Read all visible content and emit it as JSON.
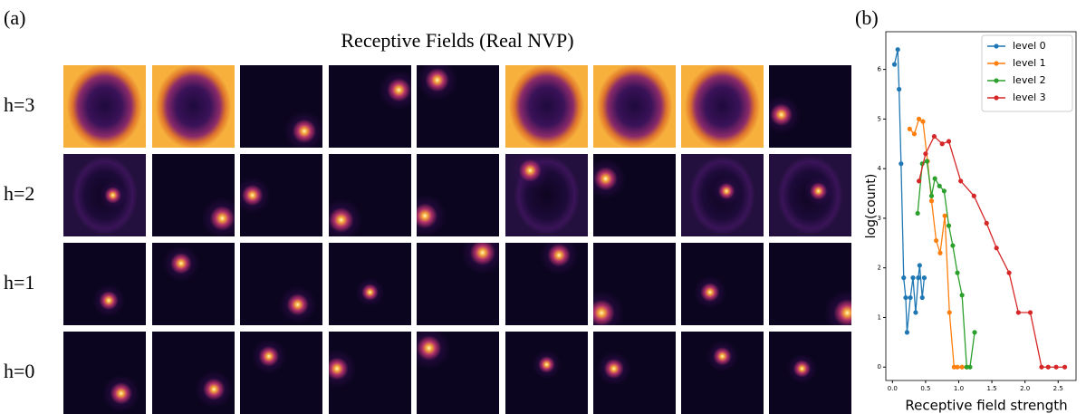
{
  "panels": {
    "a": "(a)",
    "b": "(b)"
  },
  "grid": {
    "title": "Receptive Fields (Real NVP)",
    "rows": [
      "h=3",
      "h=2",
      "h=1",
      "h=0"
    ]
  },
  "chart_data": {
    "type": "line",
    "xlabel": "Receptive field strength",
    "ylabel": "log(count)",
    "xlim": [
      -0.1,
      2.77
    ],
    "ylim": [
      -0.27,
      6.76
    ],
    "xticks": [
      {
        "value": 0,
        "label": "0.0"
      },
      {
        "value": 0.5,
        "label": "0.5"
      },
      {
        "value": 1,
        "label": "1.0"
      },
      {
        "value": 1.5,
        "label": "1.5"
      },
      {
        "value": 2,
        "label": "2.0"
      },
      {
        "value": 2.5,
        "label": "2.5"
      }
    ],
    "yticks": [
      0,
      1,
      2,
      3,
      4,
      5,
      6
    ],
    "legend": "upper right",
    "series": [
      {
        "name": "level 0",
        "color": "#1f77b4",
        "x": [
          0.03,
          0.08,
          0.1,
          0.13,
          0.17,
          0.2,
          0.22,
          0.27,
          0.31,
          0.35,
          0.39,
          0.41,
          0.45,
          0.48
        ],
        "values": [
          6.1,
          6.4,
          5.6,
          4.1,
          1.8,
          1.4,
          0.7,
          1.4,
          1.8,
          1.1,
          1.8,
          2.05,
          1.4,
          1.8
        ]
      },
      {
        "name": "level 1",
        "color": "#ff7f0e",
        "x": [
          0.26,
          0.33,
          0.4,
          0.46,
          0.53,
          0.59,
          0.66,
          0.72,
          0.79,
          0.86,
          0.93,
          0.98,
          1.05,
          1.12
        ],
        "values": [
          4.8,
          4.7,
          5.0,
          4.95,
          4.15,
          3.35,
          2.55,
          2.3,
          3.05,
          1.1,
          0,
          0,
          0,
          0
        ]
      },
      {
        "name": "level 2",
        "color": "#2ca02c",
        "x": [
          0.38,
          0.45,
          0.52,
          0.59,
          0.64,
          0.71,
          0.78,
          0.85,
          0.91,
          0.98,
          1.05,
          1.12,
          1.17,
          1.24
        ],
        "values": [
          3.1,
          4.1,
          4.15,
          3.45,
          3.8,
          3.65,
          3.55,
          2.85,
          2.45,
          1.9,
          1.45,
          0,
          0,
          0.7
        ]
      },
      {
        "name": "level 3",
        "color": "#d62728",
        "x": [
          0.4,
          0.5,
          0.63,
          0.75,
          0.85,
          1.03,
          1.23,
          1.42,
          1.57,
          1.76,
          1.9,
          2.08,
          2.25,
          2.35,
          2.47,
          2.6
        ],
        "values": [
          3.75,
          4.3,
          4.65,
          4.5,
          4.55,
          3.75,
          3.45,
          2.9,
          2.4,
          1.9,
          1.1,
          1.1,
          0,
          0,
          0,
          0
        ]
      }
    ]
  }
}
